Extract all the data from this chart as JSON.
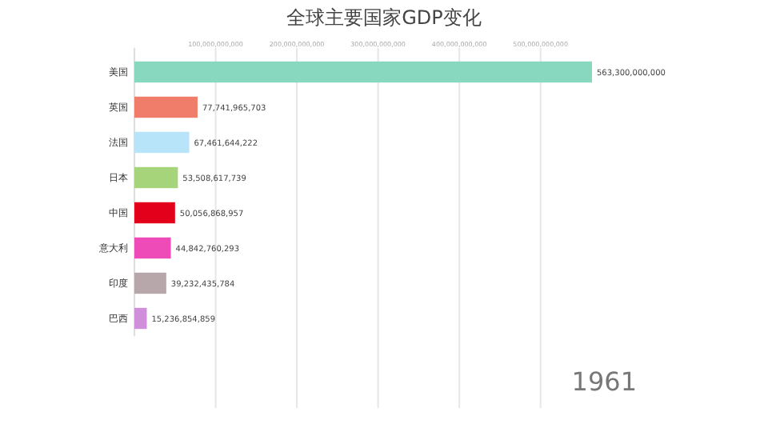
{
  "chart_data": {
    "type": "bar",
    "orientation": "horizontal",
    "title": "全球主要国家GDP变化",
    "categories": [
      "美国",
      "英国",
      "法国",
      "日本",
      "中国",
      "意大利",
      "印度",
      "巴西"
    ],
    "values": [
      563300000000,
      77741965703,
      67461644222,
      53508617739,
      50056868957,
      44842760293,
      39232435784,
      15236854859
    ],
    "colors": [
      "#88d8c0",
      "#f07c6a",
      "#b7e4f8",
      "#a6d47a",
      "#e3001b",
      "#ee4ab8",
      "#b8a7aa",
      "#cf8fdb"
    ],
    "xlim": [
      0,
      563300000000
    ],
    "xticks": [
      {
        "value": 100000000000,
        "label": "100,000,000,000"
      },
      {
        "value": 200000000000,
        "label": "200,000,000,000"
      },
      {
        "value": 300000000000,
        "label": "300,000,000,000"
      },
      {
        "value": 400000000000,
        "label": "400,000,000,000"
      },
      {
        "value": 500000000000,
        "label": "500,000,000,000"
      }
    ],
    "value_labels": [
      "563,300,000,000",
      "77,741,965,703",
      "67,461,644,222",
      "53,508,617,739",
      "50,056,868,957",
      "44,842,760,293",
      "39,232,435,784",
      "15,236,854,859"
    ],
    "grid": "x",
    "annotations": [
      "1961"
    ]
  }
}
